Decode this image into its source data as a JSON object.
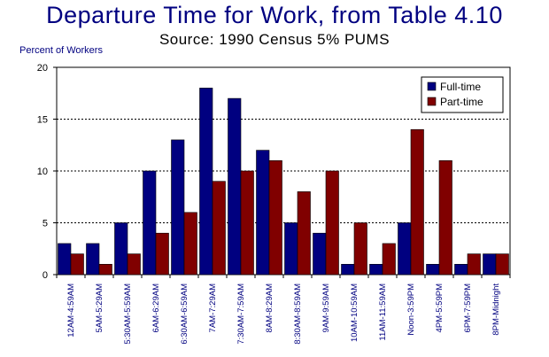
{
  "chart_data": {
    "type": "bar",
    "title": "Departure Time for Work, from Table 4.10",
    "subtitle": "Source:  1990 Census 5% PUMS",
    "ylabel": "Percent of Workers",
    "xlabel": "",
    "ylim": [
      0,
      20
    ],
    "yticks": [
      0,
      5,
      10,
      15,
      20
    ],
    "grid": true,
    "legend_position": "top-right",
    "categories": [
      "12AM-4:59AM",
      "5AM-5:29AM",
      "5:30AM-5:59AM",
      "6AM-6:29AM",
      "6:30AM-6:59AM",
      "7AM-7:29AM",
      "7:30AM-7:59AM",
      "8AM-8:29AM",
      "8:30AM-8:59AM",
      "9AM-9:59AM",
      "10AM-10:59AM",
      "11AM-11:59AM",
      "Noon-3:59PM",
      "4PM-5:59PM",
      "6PM-7:59PM",
      "8PM-Midnight"
    ],
    "series": [
      {
        "name": "Full-time",
        "color": "#000080",
        "values": [
          3,
          3,
          5,
          10,
          13,
          18,
          17,
          12,
          5,
          4,
          1,
          1,
          5,
          1,
          1,
          2
        ]
      },
      {
        "name": "Part-time",
        "color": "#800000",
        "values": [
          2,
          1,
          2,
          4,
          6,
          9,
          10,
          11,
          8,
          10,
          5,
          3,
          14,
          11,
          2,
          2
        ]
      }
    ]
  }
}
